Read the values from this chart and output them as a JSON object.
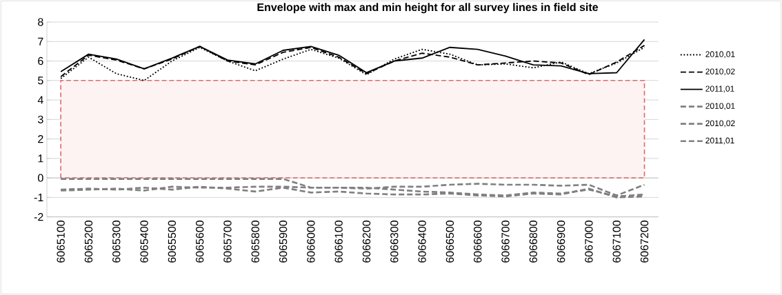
{
  "chart_data": {
    "type": "line",
    "title": "Envelope with max and min height for all survey lines in field site",
    "categories": [
      "6065100",
      "6065200",
      "6065300",
      "6065400",
      "6065500",
      "6065600",
      "6065700",
      "6065800",
      "6065900",
      "6066000",
      "6066100",
      "6066200",
      "6066300",
      "6066400",
      "6066500",
      "6066600",
      "6066700",
      "6066800",
      "6066900",
      "6067000",
      "6067100",
      "6067200"
    ],
    "series": [
      {
        "name": "2010,01",
        "color": "#000000",
        "line_style": "dotted",
        "values": [
          5.1,
          6.2,
          5.35,
          5.0,
          6.0,
          6.7,
          6.0,
          5.5,
          6.1,
          6.6,
          6.15,
          5.3,
          6.1,
          6.6,
          6.35,
          5.8,
          5.85,
          5.65,
          5.95,
          5.35,
          5.9,
          6.7
        ]
      },
      {
        "name": "2010,02",
        "color": "#000000",
        "line_style": "dashed",
        "values": [
          5.2,
          6.3,
          6.05,
          5.6,
          6.1,
          6.75,
          6.0,
          5.8,
          6.45,
          6.7,
          6.2,
          5.35,
          6.0,
          6.4,
          6.2,
          5.8,
          5.9,
          6.0,
          5.9,
          5.3,
          5.95,
          6.8
        ]
      },
      {
        "name": "2011,01",
        "color": "#000000",
        "line_style": "solid",
        "values": [
          5.45,
          6.35,
          6.1,
          5.6,
          6.15,
          6.75,
          6.05,
          5.85,
          6.55,
          6.75,
          6.3,
          5.4,
          6.0,
          6.15,
          6.7,
          6.6,
          6.25,
          5.8,
          5.75,
          5.35,
          5.4,
          7.1
        ]
      },
      {
        "name": "2010,01",
        "color": "#808080",
        "line_style": "dashed",
        "values": [
          -0.6,
          -0.55,
          -0.6,
          -0.5,
          -0.6,
          -0.45,
          -0.55,
          -0.7,
          -0.5,
          -0.75,
          -0.7,
          -0.8,
          -0.85,
          -0.85,
          -0.8,
          -0.9,
          -0.95,
          -0.8,
          -0.85,
          -0.55,
          -1.0,
          -0.95
        ]
      },
      {
        "name": "2010,02",
        "color": "#808080",
        "line_style": "dashed",
        "values": [
          -0.65,
          -0.6,
          -0.55,
          -0.65,
          -0.45,
          -0.5,
          -0.5,
          -0.45,
          -0.45,
          -0.5,
          -0.5,
          -0.55,
          -0.45,
          -0.45,
          -0.35,
          -0.3,
          -0.35,
          -0.35,
          -0.4,
          -0.35,
          -0.9,
          -0.35
        ]
      },
      {
        "name": "2011,01",
        "color": "#808080",
        "line_style": "dashed",
        "values": [
          -0.05,
          -0.05,
          -0.05,
          -0.05,
          -0.05,
          -0.05,
          -0.05,
          -0.05,
          -0.05,
          -0.5,
          -0.5,
          -0.5,
          -0.6,
          -0.7,
          -0.75,
          -0.85,
          -0.9,
          -0.75,
          -0.8,
          -0.6,
          -0.95,
          -0.85
        ]
      }
    ],
    "ylim": [
      -2,
      8
    ],
    "yticks": [
      -2,
      -1,
      0,
      1,
      2,
      3,
      4,
      5,
      6,
      7,
      8
    ],
    "bands": [
      {
        "axis": "y",
        "from": 0,
        "to": 5,
        "color": "#e06666"
      }
    ],
    "grid": "y",
    "legend": "right",
    "marker": "none"
  }
}
